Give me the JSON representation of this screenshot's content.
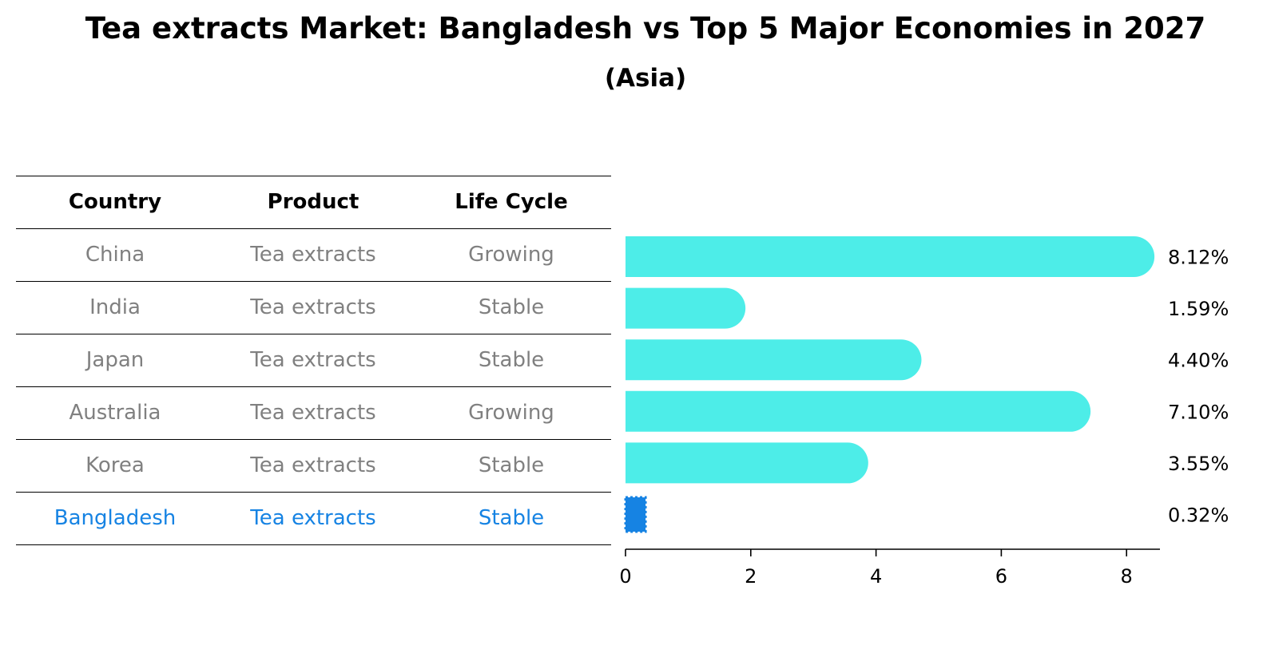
{
  "title": "Tea extracts Market: Bangladesh vs Top 5 Major Economies in 2027",
  "subtitle": "(Asia)",
  "table": {
    "headers": [
      "Country",
      "Product",
      "Life Cycle"
    ],
    "rows": [
      {
        "country": "China",
        "product": "Tea extracts",
        "life_cycle": "Growing"
      },
      {
        "country": "India",
        "product": "Tea extracts",
        "life_cycle": "Stable"
      },
      {
        "country": "Japan",
        "product": "Tea extracts",
        "life_cycle": "Stable"
      },
      {
        "country": "Australia",
        "product": "Tea extracts",
        "life_cycle": "Growing"
      },
      {
        "country": "Korea",
        "product": "Tea extracts",
        "life_cycle": "Stable"
      },
      {
        "country": "Bangladesh",
        "product": "Tea extracts",
        "life_cycle": "Stable"
      }
    ]
  },
  "colors": {
    "bar": "#4DEDE8",
    "highlight": "#1683E3",
    "muted_text": "#808080"
  },
  "chart_data": {
    "type": "bar",
    "orientation": "horizontal",
    "title": "Tea extracts Market: Bangladesh vs Top 5 Major Economies in 2027",
    "subtitle": "(Asia)",
    "categories": [
      "China",
      "India",
      "Japan",
      "Australia",
      "Korea",
      "Bangladesh"
    ],
    "values": [
      8.12,
      1.59,
      4.4,
      7.1,
      3.55,
      0.32
    ],
    "labels": [
      "8.12%",
      "1.59%",
      "4.40%",
      "7.10%",
      "3.55%",
      "0.32%"
    ],
    "highlight": "Bangladesh",
    "xlim": [
      0,
      8.5
    ],
    "xticks": [
      0,
      2,
      4,
      6,
      8
    ],
    "xlabel": "",
    "ylabel": "",
    "grid": false
  }
}
